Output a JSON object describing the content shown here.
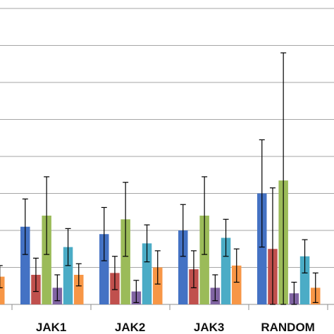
{
  "chart_data": {
    "type": "bar",
    "title": "",
    "xlabel": "",
    "ylabel": "",
    "grid": true,
    "legend": "none",
    "ylim": [
      0,
      8
    ],
    "categories": [
      "JAK1",
      "JAK2",
      "JAK3",
      "RANDOM"
    ],
    "series": [
      {
        "color": "#4472C4",
        "values": [
          2.1,
          1.9,
          2.0,
          3.0
        ],
        "errors": [
          0.75,
          0.72,
          0.7,
          1.45
        ]
      },
      {
        "color": "#C0504D",
        "values": [
          0.8,
          0.85,
          0.95,
          1.5
        ],
        "errors": [
          0.45,
          0.45,
          0.5,
          1.65
        ]
      },
      {
        "color": "#9BBB59",
        "values": [
          2.4,
          2.3,
          2.4,
          3.35
        ],
        "errors": [
          1.05,
          1.0,
          1.05,
          3.45
        ]
      },
      {
        "color": "#8064A2",
        "values": [
          0.45,
          0.35,
          0.45,
          0.3
        ],
        "errors": [
          0.35,
          0.3,
          0.35,
          0.3
        ]
      },
      {
        "color": "#4BACC6",
        "values": [
          1.55,
          1.65,
          1.8,
          1.3
        ],
        "errors": [
          0.5,
          0.5,
          0.5,
          0.45
        ]
      },
      {
        "color": "#F79646",
        "values": [
          0.8,
          1.0,
          1.05,
          0.45
        ],
        "errors": [
          0.3,
          0.45,
          0.45,
          0.4
        ]
      }
    ],
    "partial_left_group": {
      "values": [
        null,
        null,
        null,
        null,
        null,
        0.75
      ],
      "errors": [
        null,
        null,
        null,
        null,
        null,
        0.3
      ]
    }
  }
}
